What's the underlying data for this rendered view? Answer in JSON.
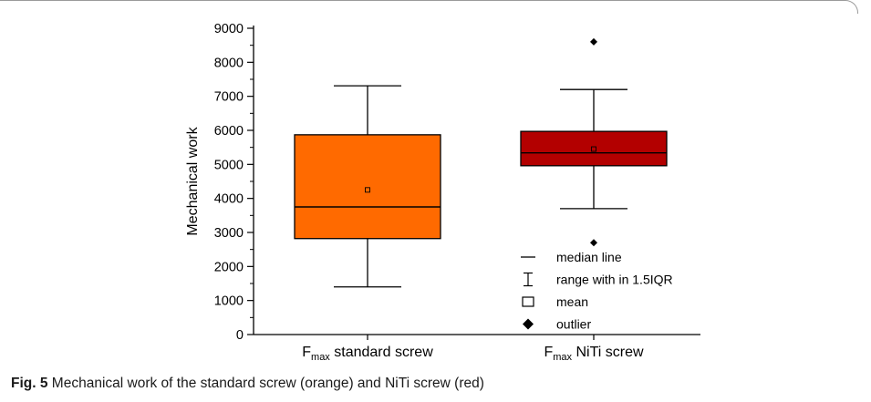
{
  "chart_data": {
    "type": "box",
    "ylabel": "Mechanical work",
    "ylim": [
      0,
      9000
    ],
    "yticks": [
      0,
      1000,
      2000,
      3000,
      4000,
      5000,
      6000,
      7000,
      8000,
      9000
    ],
    "categories": [
      {
        "main": "F",
        "sub": "max",
        "rest": " standard screw"
      },
      {
        "main": "F",
        "sub": "max",
        "rest": " NiTi screw"
      }
    ],
    "boxes": [
      {
        "whisker_low": 1400,
        "q1": 2820,
        "median": 3750,
        "q3": 5870,
        "whisker_high": 7310,
        "mean": 4250,
        "outliers": [],
        "color": "#ff6a00"
      },
      {
        "whisker_low": 3700,
        "q1": 4960,
        "median": 5340,
        "q3": 5970,
        "whisker_high": 7200,
        "mean": 5450,
        "outliers": [
          8600,
          2700
        ],
        "color": "#b30000"
      }
    ],
    "legend": {
      "placement": "bottom-right",
      "items": [
        {
          "symbol": "line",
          "label": "median line"
        },
        {
          "symbol": "whisker",
          "label": "range with in 1.5IQR"
        },
        {
          "symbol": "square",
          "label": "mean"
        },
        {
          "symbol": "diamond",
          "label": "outlier"
        }
      ]
    }
  },
  "caption": {
    "label": "Fig. 5",
    "text": "Mechanical work of the standard screw (orange) and NiTi screw (red)"
  }
}
